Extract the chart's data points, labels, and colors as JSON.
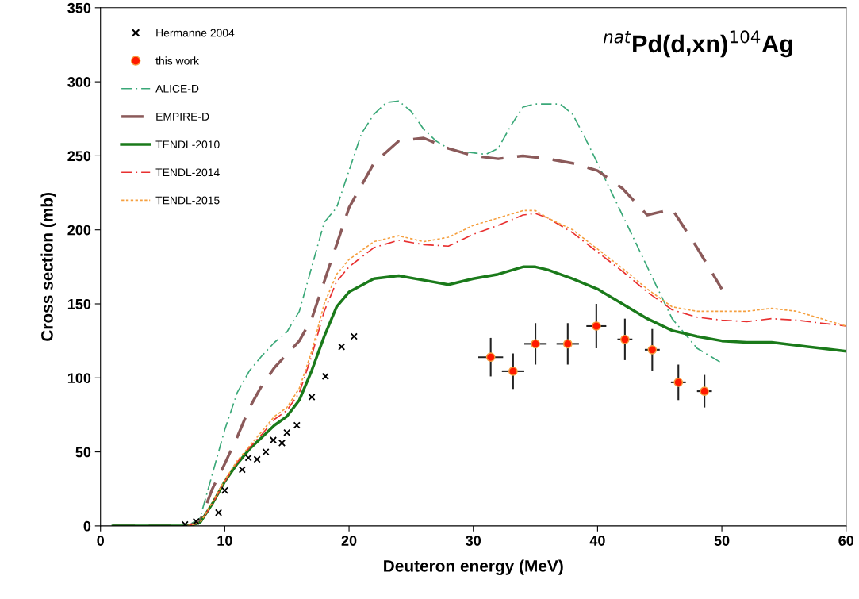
{
  "chart_data": {
    "type": "line",
    "title": "$^{nat}$Pd(d,xn)$^{104}$Ag",
    "xlabel": "Deuteron energy (MeV)",
    "ylabel": "Cross section (mb)",
    "xlim": [
      0,
      60
    ],
    "ylim": [
      0,
      350
    ],
    "xticks": [
      0,
      10,
      20,
      30,
      40,
      50,
      60
    ],
    "yticks": [
      0,
      50,
      100,
      150,
      200,
      250,
      300,
      350
    ],
    "grid": false,
    "legend": "top left",
    "series": [
      {
        "name": "Hermanne 2004",
        "type": "scatter",
        "marker": "cross",
        "color": "#000000",
        "x": [
          6.8,
          7.7,
          9.5,
          10.0,
          11.4,
          11.9,
          12.6,
          13.3,
          13.9,
          14.6,
          15.0,
          15.8,
          17.0,
          18.1,
          19.4,
          20.4
        ],
        "values": [
          1,
          3,
          9,
          24,
          38,
          46,
          45,
          50,
          58,
          56,
          63,
          68,
          87,
          101,
          121,
          128
        ]
      },
      {
        "name": "this work",
        "type": "scatter",
        "marker": "circle",
        "color": "#ff1a00",
        "x": [
          31.4,
          33.2,
          35.0,
          37.6,
          39.9,
          42.2,
          44.4,
          46.5,
          48.6
        ],
        "values": [
          114,
          104.5,
          123,
          123,
          135,
          126,
          119,
          97,
          91
        ],
        "errors": [
          13,
          12,
          14,
          14,
          15,
          14,
          14,
          12,
          11
        ],
        "xerrors": [
          1.0,
          0.9,
          0.9,
          0.9,
          0.8,
          0.6,
          0.6,
          0.6,
          0.6
        ]
      },
      {
        "name": "ALICE-D",
        "line_style": "dashdot",
        "color": "#3aa878",
        "x": [
          1,
          3,
          5,
          7,
          8,
          9,
          10,
          11,
          12,
          13,
          14,
          15,
          16,
          17,
          18,
          19,
          20,
          21,
          22,
          23,
          24,
          25,
          26,
          27,
          28,
          29,
          30,
          31,
          32,
          33,
          34,
          35,
          36,
          37,
          38,
          39,
          40,
          42,
          44,
          46,
          48,
          50
        ],
        "values": [
          0,
          0,
          0,
          0,
          5,
          35,
          65,
          90,
          105,
          115,
          124,
          131,
          145,
          175,
          205,
          215,
          240,
          265,
          278,
          286,
          287,
          280,
          268,
          260,
          255,
          253,
          252,
          251,
          255,
          270,
          283,
          285,
          285,
          285,
          278,
          262,
          245,
          210,
          175,
          140,
          120,
          110
        ]
      },
      {
        "name": "EMPIRE-D",
        "line_style": "dashed",
        "color": "#8b5a5a",
        "x": [
          1,
          3,
          5,
          7,
          8,
          9,
          10,
          11,
          12,
          13,
          14,
          15,
          16,
          17,
          18,
          19,
          20,
          22,
          24,
          26,
          28,
          30,
          32,
          34,
          36,
          38,
          40,
          42,
          44,
          46,
          48,
          50
        ],
        "values": [
          0,
          0,
          0,
          0,
          3,
          25,
          42,
          60,
          80,
          95,
          107,
          116,
          125,
          140,
          165,
          190,
          215,
          245,
          260,
          262,
          255,
          250,
          248,
          250,
          248,
          245,
          240,
          228,
          210,
          214,
          188,
          160
        ]
      },
      {
        "name": "TENDL-2010",
        "line_style": "solid",
        "color": "#1a7a1a",
        "x": [
          1,
          3,
          5,
          7,
          8,
          9,
          10,
          11,
          12,
          13,
          14,
          15,
          16,
          17,
          18,
          19,
          20,
          22,
          24,
          26,
          28,
          30,
          32,
          34,
          35,
          36,
          38,
          40,
          42,
          44,
          46,
          48,
          50,
          52,
          54,
          56,
          58,
          60
        ],
        "values": [
          0,
          0,
          0,
          0,
          2,
          15,
          30,
          42,
          52,
          60,
          68,
          74,
          85,
          105,
          128,
          148,
          158,
          167,
          169,
          166,
          163,
          167,
          170,
          175,
          175,
          173,
          167,
          160,
          150,
          140,
          132,
          128,
          125,
          124,
          124,
          122,
          120,
          118
        ]
      },
      {
        "name": "TENDL-2014",
        "line_style": "dashdot",
        "color": "#e83030",
        "x": [
          7,
          8,
          9,
          10,
          11,
          12,
          13,
          14,
          15,
          16,
          17,
          18,
          19,
          20,
          22,
          24,
          26,
          28,
          30,
          32,
          34,
          35,
          36,
          38,
          40,
          42,
          44,
          46,
          48,
          50,
          52,
          54,
          56,
          58,
          60
        ],
        "values": [
          0,
          2,
          15,
          30,
          43,
          53,
          62,
          72,
          78,
          90,
          115,
          145,
          165,
          175,
          188,
          193,
          190,
          189,
          197,
          203,
          210,
          211,
          208,
          198,
          185,
          172,
          158,
          146,
          141,
          139,
          138,
          140,
          139,
          137,
          135
        ]
      },
      {
        "name": "TENDL-2015",
        "line_style": "dotted",
        "color": "#f5a040",
        "x": [
          7,
          8,
          9,
          10,
          11,
          12,
          13,
          14,
          15,
          16,
          17,
          18,
          19,
          20,
          22,
          24,
          26,
          28,
          30,
          32,
          34,
          35,
          36,
          38,
          40,
          42,
          44,
          46,
          48,
          50,
          52,
          54,
          56,
          58,
          60
        ],
        "values": [
          0,
          2,
          16,
          31,
          44,
          54,
          64,
          74,
          80,
          93,
          118,
          150,
          170,
          180,
          192,
          196,
          192,
          195,
          203,
          208,
          213,
          213,
          208,
          200,
          187,
          174,
          160,
          148,
          145,
          145,
          145,
          147,
          145,
          140,
          135
        ]
      }
    ]
  }
}
